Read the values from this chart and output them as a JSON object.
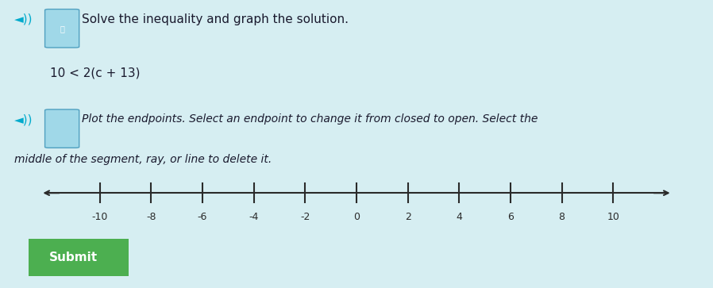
{
  "bg_color": "#d6eef2",
  "title_line1": "Solve the inequality and graph the solution.",
  "inequality": "10 < 2(c + 13)",
  "instruction_line1": "Plot the endpoints. Select an endpoint to change it from closed to open. Select the",
  "instruction_line2": "middle of the segment, ray, or line to delete it.",
  "tick_positions": [
    -10,
    -8,
    -6,
    -4,
    -2,
    0,
    2,
    4,
    6,
    8,
    10
  ],
  "tick_labels": [
    "-10",
    "-8",
    "-6",
    "-4",
    "-2",
    "0",
    "2",
    "4",
    "6",
    "8",
    "10"
  ],
  "line_color": "#2a2a2a",
  "text_color": "#1a1a2e",
  "cyan_color": "#00aacc",
  "button_color": "#4caf50",
  "button_text": "Submit",
  "button_text_color": "#ffffff"
}
